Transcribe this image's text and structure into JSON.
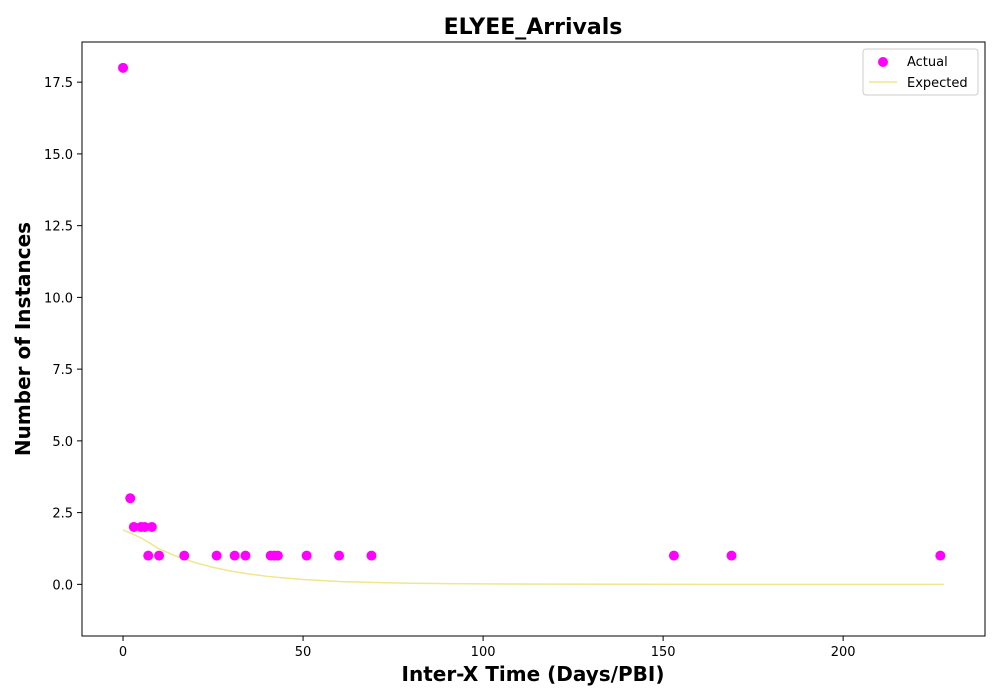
{
  "chart_data": {
    "type": "scatter",
    "title": "ELYEE_Arrivals",
    "xlabel": "Inter-X Time (Days/PBI)",
    "ylabel": "Number of Instances",
    "xlim": [
      -11.4,
      239.4
    ],
    "ylim": [
      -1.8,
      18.9
    ],
    "x_ticks": [
      0,
      50,
      100,
      150,
      200
    ],
    "x_tick_labels": [
      "0",
      "50",
      "100",
      "150",
      "200"
    ],
    "y_ticks": [
      0,
      2.5,
      5,
      7.5,
      10,
      12.5,
      15,
      17.5
    ],
    "y_tick_labels": [
      "0.0",
      "2.5",
      "5.0",
      "7.5",
      "10.0",
      "12.5",
      "15.0",
      "17.5"
    ],
    "grid": false,
    "legend_position": "top-right",
    "series": [
      {
        "name": "Actual",
        "kind": "scatter",
        "color": "#ff00ff",
        "points": [
          [
            0,
            18
          ],
          [
            2,
            3
          ],
          [
            3,
            2
          ],
          [
            5,
            2
          ],
          [
            6,
            2
          ],
          [
            7,
            1
          ],
          [
            8,
            2
          ],
          [
            10,
            1
          ],
          [
            17,
            1
          ],
          [
            26,
            1
          ],
          [
            31,
            1
          ],
          [
            34,
            1
          ],
          [
            41,
            1
          ],
          [
            42,
            1
          ],
          [
            43,
            1
          ],
          [
            51,
            1
          ],
          [
            60,
            1
          ],
          [
            69,
            1
          ],
          [
            153,
            1
          ],
          [
            169,
            1
          ],
          [
            227,
            1
          ]
        ]
      },
      {
        "name": "Expected",
        "kind": "line",
        "color": "#f0e68c",
        "points": [
          [
            0,
            1.9
          ],
          [
            5,
            1.62
          ],
          [
            10,
            1.24
          ],
          [
            15,
            0.97
          ],
          [
            20,
            0.76
          ],
          [
            25,
            0.59
          ],
          [
            30,
            0.46
          ],
          [
            35,
            0.36
          ],
          [
            40,
            0.28
          ],
          [
            45,
            0.22
          ],
          [
            50,
            0.17
          ],
          [
            60,
            0.1
          ],
          [
            70,
            0.065
          ],
          [
            80,
            0.04
          ],
          [
            90,
            0.024
          ],
          [
            100,
            0.015
          ],
          [
            120,
            0.006
          ],
          [
            140,
            0.002
          ],
          [
            160,
            0.001
          ],
          [
            180,
            0.0
          ],
          [
            200,
            0.0
          ],
          [
            228,
            0.0
          ]
        ]
      }
    ]
  }
}
